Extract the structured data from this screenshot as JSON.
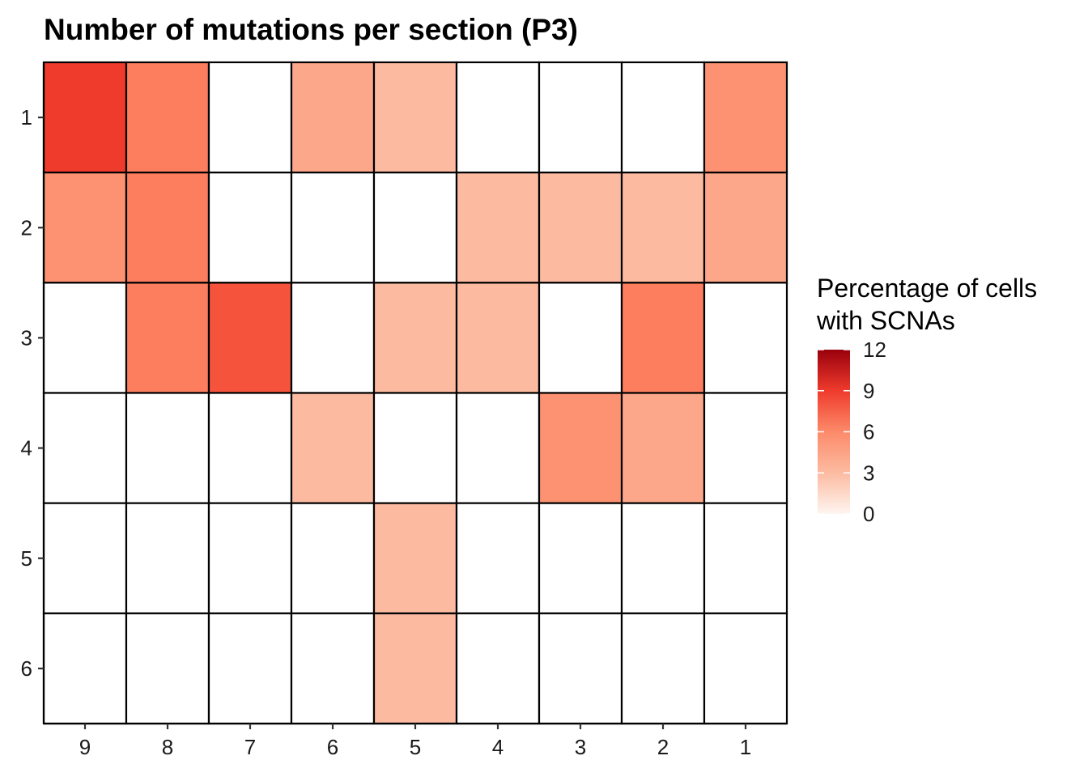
{
  "chart_data": {
    "type": "heatmap",
    "title": "Number of mutations per section (P3)",
    "x_categories": [
      "9",
      "8",
      "7",
      "6",
      "5",
      "4",
      "3",
      "2",
      "1"
    ],
    "y_categories": [
      "1",
      "2",
      "3",
      "4",
      "5",
      "6"
    ],
    "values": [
      [
        8,
        5,
        null,
        3,
        2,
        null,
        null,
        null,
        4
      ],
      [
        4,
        5,
        null,
        null,
        null,
        2,
        2,
        2,
        3
      ],
      [
        null,
        5,
        7,
        null,
        2,
        2,
        null,
        5,
        null
      ],
      [
        null,
        null,
        null,
        2,
        null,
        null,
        4,
        3,
        null
      ],
      [
        null,
        null,
        null,
        null,
        2,
        null,
        null,
        null,
        null
      ],
      [
        null,
        null,
        null,
        null,
        2,
        null,
        null,
        null,
        null
      ]
    ],
    "legend": {
      "title_lines": [
        "Percentage of cells",
        "with SCNAs"
      ],
      "ticks": [
        12,
        9,
        6,
        3,
        0
      ],
      "range": [
        0,
        12
      ],
      "colors": [
        "#fff5f0",
        "#fcbba1",
        "#fc9272",
        "#fb6a4a",
        "#ef3b2c",
        "#a50f15",
        "#99000d"
      ]
    },
    "empty_color": "#ffffff",
    "grid_color": "#000000"
  }
}
